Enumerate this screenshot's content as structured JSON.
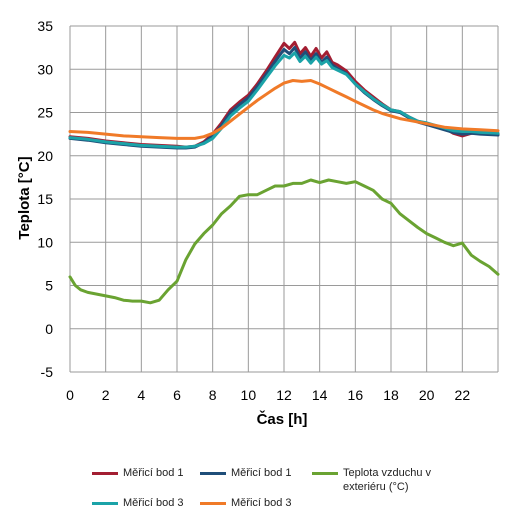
{
  "chart_data": {
    "type": "line",
    "xlabel": "Čas [h]",
    "ylabel": "Teplota [°C]",
    "xlim": [
      0,
      24
    ],
    "ylim": [
      -5,
      35
    ],
    "xticks": [
      0,
      2,
      4,
      6,
      8,
      10,
      12,
      14,
      16,
      18,
      20,
      22
    ],
    "yticks": [
      -5,
      0,
      5,
      10,
      15,
      20,
      25,
      30,
      35
    ],
    "grid": true,
    "legend_position": "bottom",
    "series": [
      {
        "name": "Měřicí bod 1",
        "color": "#a31e32",
        "x": [
          0,
          1,
          2,
          3,
          4,
          5,
          6,
          6.5,
          7,
          7.5,
          8,
          8.5,
          9,
          9.5,
          10,
          10.5,
          11,
          11.5,
          12,
          12.3,
          12.6,
          12.9,
          13.2,
          13.5,
          13.8,
          14.1,
          14.4,
          14.7,
          15,
          15.5,
          16,
          16.5,
          17,
          17.5,
          18,
          18.5,
          19,
          19.5,
          20,
          20.5,
          21,
          21.5,
          22,
          22.5,
          23,
          24
        ],
        "y": [
          22.2,
          22.0,
          21.7,
          21.5,
          21.3,
          21.2,
          21.1,
          21.0,
          21.1,
          21.6,
          22.5,
          23.8,
          25.3,
          26.2,
          27.0,
          28.3,
          29.8,
          31.4,
          33.0,
          32.4,
          33.1,
          31.8,
          32.5,
          31.5,
          32.4,
          31.3,
          32.0,
          30.8,
          30.5,
          29.8,
          28.6,
          27.6,
          26.8,
          26.0,
          25.3,
          25.1,
          24.5,
          24.0,
          23.7,
          23.4,
          23.2,
          22.6,
          22.3,
          22.6,
          22.6,
          22.5
        ]
      },
      {
        "name": "Měřicí bod 1",
        "color": "#1f4e79",
        "x": [
          0,
          1,
          2,
          3,
          4,
          5,
          6,
          6.5,
          7,
          7.5,
          8,
          8.5,
          9,
          9.5,
          10,
          10.5,
          11,
          11.5,
          12,
          12.3,
          12.6,
          12.9,
          13.2,
          13.5,
          13.8,
          14.1,
          14.4,
          14.7,
          15,
          15.5,
          16,
          16.5,
          17,
          17.5,
          18,
          18.5,
          19,
          19.5,
          20,
          20.5,
          21,
          21.5,
          22,
          22.5,
          23,
          24
        ],
        "y": [
          22.0,
          21.8,
          21.5,
          21.3,
          21.1,
          21.0,
          20.9,
          20.9,
          21.0,
          21.5,
          22.3,
          23.5,
          25.0,
          25.9,
          26.7,
          28.0,
          29.4,
          30.9,
          32.3,
          31.8,
          32.5,
          31.3,
          32.0,
          31.0,
          31.8,
          30.8,
          31.4,
          30.5,
          30.1,
          29.5,
          28.3,
          27.3,
          26.5,
          25.8,
          25.2,
          25.0,
          24.4,
          23.9,
          23.6,
          23.3,
          23.0,
          22.7,
          22.5,
          22.6,
          22.5,
          22.4
        ]
      },
      {
        "name": "Teplota vzduchu v exteriéru (°C)",
        "color": "#6aa332",
        "x": [
          0,
          0.3,
          0.6,
          1,
          1.5,
          2,
          2.5,
          3,
          3.5,
          4,
          4.5,
          5,
          5.5,
          6,
          6.5,
          7,
          7.5,
          8,
          8.5,
          9,
          9.5,
          10,
          10.5,
          11,
          11.5,
          12,
          12.5,
          13,
          13.5,
          14,
          14.5,
          15,
          15.5,
          16,
          16.5,
          17,
          17.5,
          18,
          18.5,
          19,
          19.5,
          20,
          20.5,
          21,
          21.5,
          22,
          22.5,
          23,
          23.5,
          24
        ],
        "y": [
          6.0,
          5.0,
          4.5,
          4.2,
          4.0,
          3.8,
          3.6,
          3.3,
          3.2,
          3.2,
          3.0,
          3.3,
          4.5,
          5.5,
          8.0,
          9.8,
          11.0,
          12.0,
          13.3,
          14.2,
          15.3,
          15.5,
          15.5,
          16.0,
          16.5,
          16.5,
          16.8,
          16.8,
          17.2,
          16.9,
          17.2,
          17.0,
          16.8,
          17.0,
          16.5,
          16.0,
          15.0,
          14.5,
          13.3,
          12.5,
          11.7,
          11.0,
          10.5,
          10.0,
          9.6,
          9.9,
          8.5,
          7.8,
          7.2,
          6.3
        ]
      },
      {
        "name": "Měřicí bod 3",
        "color": "#1ba3a8",
        "x": [
          0,
          1,
          2,
          3,
          4,
          5,
          6,
          6.5,
          7,
          7.5,
          8,
          8.5,
          9,
          9.5,
          10,
          10.5,
          11,
          11.5,
          12,
          12.3,
          12.6,
          12.9,
          13.2,
          13.5,
          13.8,
          14.1,
          14.4,
          14.7,
          15,
          15.5,
          16,
          16.5,
          17,
          17.5,
          18,
          18.5,
          19,
          19.5,
          20,
          20.5,
          21,
          21.5,
          22,
          22.5,
          23,
          24
        ],
        "y": [
          22.1,
          21.9,
          21.6,
          21.4,
          21.2,
          21.1,
          21.0,
          21.0,
          21.1,
          21.4,
          22.0,
          23.2,
          24.6,
          25.5,
          26.3,
          27.6,
          29.0,
          30.4,
          31.6,
          31.3,
          31.9,
          30.9,
          31.5,
          30.7,
          31.4,
          30.6,
          31.0,
          30.2,
          29.9,
          29.4,
          28.3,
          27.4,
          26.6,
          25.9,
          25.3,
          25.1,
          24.5,
          24.0,
          23.8,
          23.5,
          23.2,
          22.9,
          22.8,
          22.8,
          22.7,
          22.6
        ]
      },
      {
        "name": "Měřicí bod 3",
        "color": "#f07a28",
        "x": [
          0,
          1,
          2,
          3,
          4,
          5,
          6,
          7,
          7.5,
          8,
          8.5,
          9,
          9.5,
          10,
          10.5,
          11,
          11.5,
          12,
          12.5,
          13,
          13.5,
          14,
          14.5,
          15,
          15.5,
          16,
          16.5,
          17,
          17.5,
          18,
          18.5,
          19,
          20,
          21,
          22,
          23,
          24
        ],
        "y": [
          22.8,
          22.7,
          22.5,
          22.3,
          22.2,
          22.1,
          22.0,
          22.0,
          22.2,
          22.6,
          23.2,
          24.0,
          24.8,
          25.6,
          26.4,
          27.1,
          27.8,
          28.4,
          28.7,
          28.6,
          28.7,
          28.3,
          27.8,
          27.3,
          26.8,
          26.3,
          25.8,
          25.3,
          24.9,
          24.6,
          24.3,
          24.1,
          23.7,
          23.3,
          23.1,
          23.0,
          22.9
        ]
      }
    ]
  }
}
